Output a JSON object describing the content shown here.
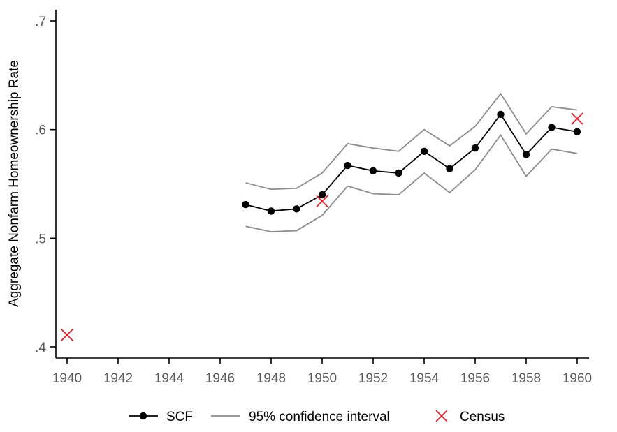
{
  "chart_data": {
    "type": "line",
    "ylabel": "Aggregate Nonfarm Homeownership Rate",
    "xlabel": "",
    "xlim": [
      1940,
      1960
    ],
    "ylim": [
      0.4,
      0.7
    ],
    "x_ticks": [
      1940,
      1942,
      1944,
      1946,
      1948,
      1950,
      1952,
      1954,
      1956,
      1958,
      1960
    ],
    "x_tick_labels": [
      "1940",
      "1942",
      "1944",
      "1946",
      "1948",
      "1950",
      "1952",
      "1954",
      "1956",
      "1958",
      "1960"
    ],
    "y_ticks": [
      0.4,
      0.5,
      0.6,
      0.7
    ],
    "y_tick_labels": [
      ".4",
      ".5",
      ".6",
      ".7"
    ],
    "grid": false,
    "legend_position": "bottom",
    "series": [
      {
        "name": "SCF",
        "kind": "line-marker",
        "color": "#000000",
        "x": [
          1947,
          1948,
          1949,
          1950,
          1951,
          1952,
          1953,
          1954,
          1955,
          1956,
          1957,
          1958,
          1959,
          1960
        ],
        "y": [
          0.531,
          0.525,
          0.527,
          0.54,
          0.567,
          0.562,
          0.56,
          0.58,
          0.564,
          0.583,
          0.614,
          0.577,
          0.602,
          0.598
        ]
      },
      {
        "name": "95% confidence interval",
        "kind": "band-lines",
        "color": "#8c8c8c",
        "x": [
          1947,
          1948,
          1949,
          1950,
          1951,
          1952,
          1953,
          1954,
          1955,
          1956,
          1957,
          1958,
          1959,
          1960
        ],
        "upper": [
          0.551,
          0.545,
          0.546,
          0.56,
          0.587,
          0.583,
          0.58,
          0.6,
          0.585,
          0.603,
          0.633,
          0.596,
          0.621,
          0.618
        ],
        "lower": [
          0.511,
          0.506,
          0.507,
          0.521,
          0.548,
          0.541,
          0.54,
          0.56,
          0.542,
          0.563,
          0.595,
          0.557,
          0.582,
          0.578
        ]
      },
      {
        "name": "Census",
        "kind": "x-marker",
        "color": "#e8202a",
        "x": [
          1940,
          1950,
          1960
        ],
        "y": [
          0.411,
          0.534,
          0.61
        ]
      }
    ],
    "legend": [
      {
        "name": "SCF",
        "symbol": "line-marker",
        "color": "#000000"
      },
      {
        "name": "95% confidence interval",
        "symbol": "line",
        "color": "#8c8c8c"
      },
      {
        "name": "Census",
        "symbol": "x-marker",
        "color": "#e8202a"
      }
    ]
  }
}
